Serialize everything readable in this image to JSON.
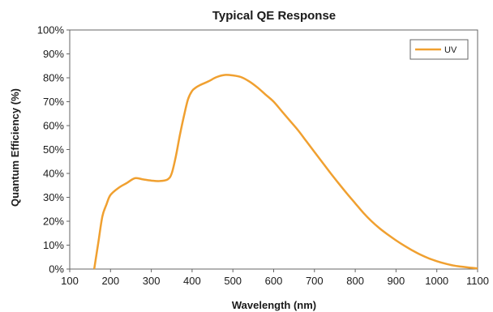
{
  "chart_data": {
    "type": "line",
    "title": "Typical QE Response",
    "xlabel": "Wavelength (nm)",
    "ylabel": "Quantum Efficiency (%)",
    "xlim": [
      100,
      1100
    ],
    "ylim": [
      0,
      100
    ],
    "x_ticks": [
      100,
      200,
      300,
      400,
      500,
      600,
      700,
      800,
      900,
      1000,
      1100
    ],
    "y_ticks": [
      0,
      10,
      20,
      30,
      40,
      50,
      60,
      70,
      80,
      90,
      100
    ],
    "x_tick_labels": [
      "100",
      "200",
      "300",
      "400",
      "500",
      "600",
      "700",
      "800",
      "900",
      "1000",
      "1100"
    ],
    "y_tick_labels": [
      "0%",
      "10%",
      "20%",
      "30%",
      "40%",
      "50%",
      "60%",
      "70%",
      "80%",
      "90%",
      "100%"
    ],
    "grid": false,
    "legend": {
      "placement": "top-right"
    },
    "series": [
      {
        "name": "UV",
        "color": "#F0A030",
        "x": [
          160,
          170,
          180,
          190,
          200,
          220,
          240,
          260,
          280,
          300,
          320,
          340,
          350,
          360,
          370,
          380,
          390,
          400,
          410,
          420,
          440,
          460,
          480,
          500,
          520,
          540,
          560,
          580,
          600,
          620,
          640,
          660,
          680,
          700,
          720,
          740,
          760,
          780,
          800,
          820,
          840,
          860,
          880,
          900,
          920,
          940,
          960,
          980,
          1000,
          1020,
          1040,
          1060,
          1080,
          1100
        ],
        "y": [
          0,
          11,
          22,
          27,
          31,
          34,
          36,
          38,
          37.5,
          37,
          36.8,
          37.5,
          40,
          47,
          56,
          64,
          71,
          74.5,
          76,
          77,
          78.5,
          80.3,
          81.2,
          81,
          80.3,
          78.5,
          76,
          73,
          70,
          66,
          62,
          58,
          53.5,
          49,
          44.5,
          40,
          35.7,
          31.5,
          27.5,
          23.5,
          20,
          17,
          14.4,
          12,
          9.8,
          7.8,
          6,
          4.5,
          3.3,
          2.3,
          1.5,
          1,
          0.6,
          0.3
        ]
      }
    ]
  }
}
